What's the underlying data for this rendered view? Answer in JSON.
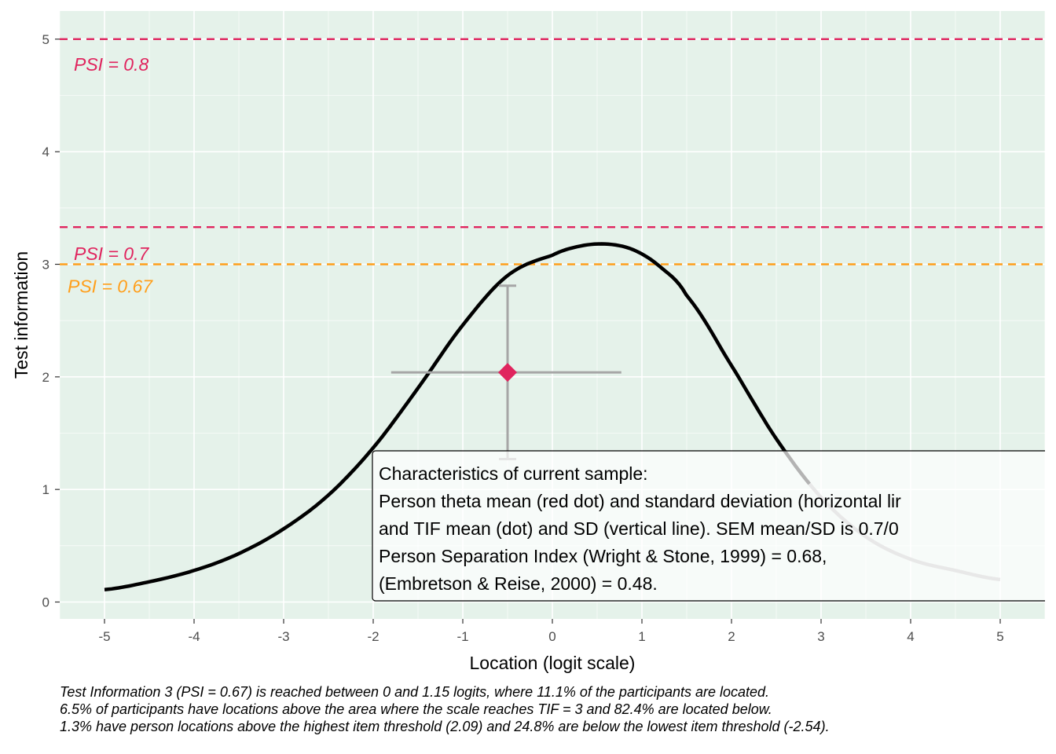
{
  "chart_data": {
    "type": "line",
    "xlabel": "Location (logit scale)",
    "ylabel": "Test information",
    "xlim": [
      -5.5,
      5.5
    ],
    "ylim": [
      -0.15,
      5.25
    ],
    "x_ticks": [
      -5,
      -4,
      -3,
      -2,
      -1,
      0,
      1,
      2,
      3,
      4,
      5
    ],
    "y_ticks": [
      0,
      1,
      2,
      3,
      4,
      5
    ],
    "grid": true,
    "panel_background": "#e5f2ea",
    "series": [
      {
        "values_description_free": true,
        "x": [
          -5.0,
          -4.5,
          -4.0,
          -3.5,
          -3.0,
          -2.5,
          -2.0,
          -1.5,
          -1.0,
          -0.5,
          0.0,
          0.3,
          0.6,
          0.9,
          1.2,
          1.5,
          2.0,
          2.5,
          3.0,
          3.5,
          4.0,
          4.5,
          5.0
        ],
        "y": [
          0.11,
          0.18,
          0.28,
          0.43,
          0.65,
          0.95,
          1.37,
          1.9,
          2.46,
          2.9,
          3.08,
          3.16,
          3.18,
          3.13,
          2.98,
          2.72,
          2.1,
          1.45,
          0.93,
          0.58,
          0.38,
          0.28,
          0.2
        ],
        "color": "#000000",
        "faded_color": "#b3b3b3",
        "faded_from_x": 2.87
      }
    ],
    "reference_lines": [
      {
        "y": 5.0,
        "label": "PSI = 0.8",
        "color": "#e0245e"
      },
      {
        "y": 3.33,
        "label": "PSI = 0.7",
        "color": "#e0245e"
      },
      {
        "y": 3.0,
        "label": "PSI = 0.67",
        "color": "#ff9f1c"
      }
    ],
    "point": {
      "x": -0.5,
      "y": 2.04,
      "x_low": -1.8,
      "x_high": 0.77,
      "y_low": 1.27,
      "y_high": 2.81,
      "color": "#e0245e",
      "errorbar_color": "#a6a6a6"
    },
    "annotation": {
      "lines": [
        "Characteristics of current sample:",
        "Person theta mean (red dot) and standard deviation (horizontal lir",
        "and TIF mean (dot) and SD (vertical line). SEM mean/SD is 0.7/0",
        "Person Separation Index (Wright & Stone, 1999) = 0.68,",
        "(Embretson & Reise, 2000) = 0.48."
      ]
    }
  },
  "caption": {
    "lines": [
      "Test Information 3 (PSI = 0.67) is reached between 0 and 1.15 logits, where 11.1% of the participants are located.",
      "6.5% of participants have locations above the area where the scale reaches TIF = 3 and 82.4% are located below.",
      "1.3% have person locations above the highest item threshold (2.09) and 24.8% are below the lowest item threshold (-2.54)."
    ]
  }
}
